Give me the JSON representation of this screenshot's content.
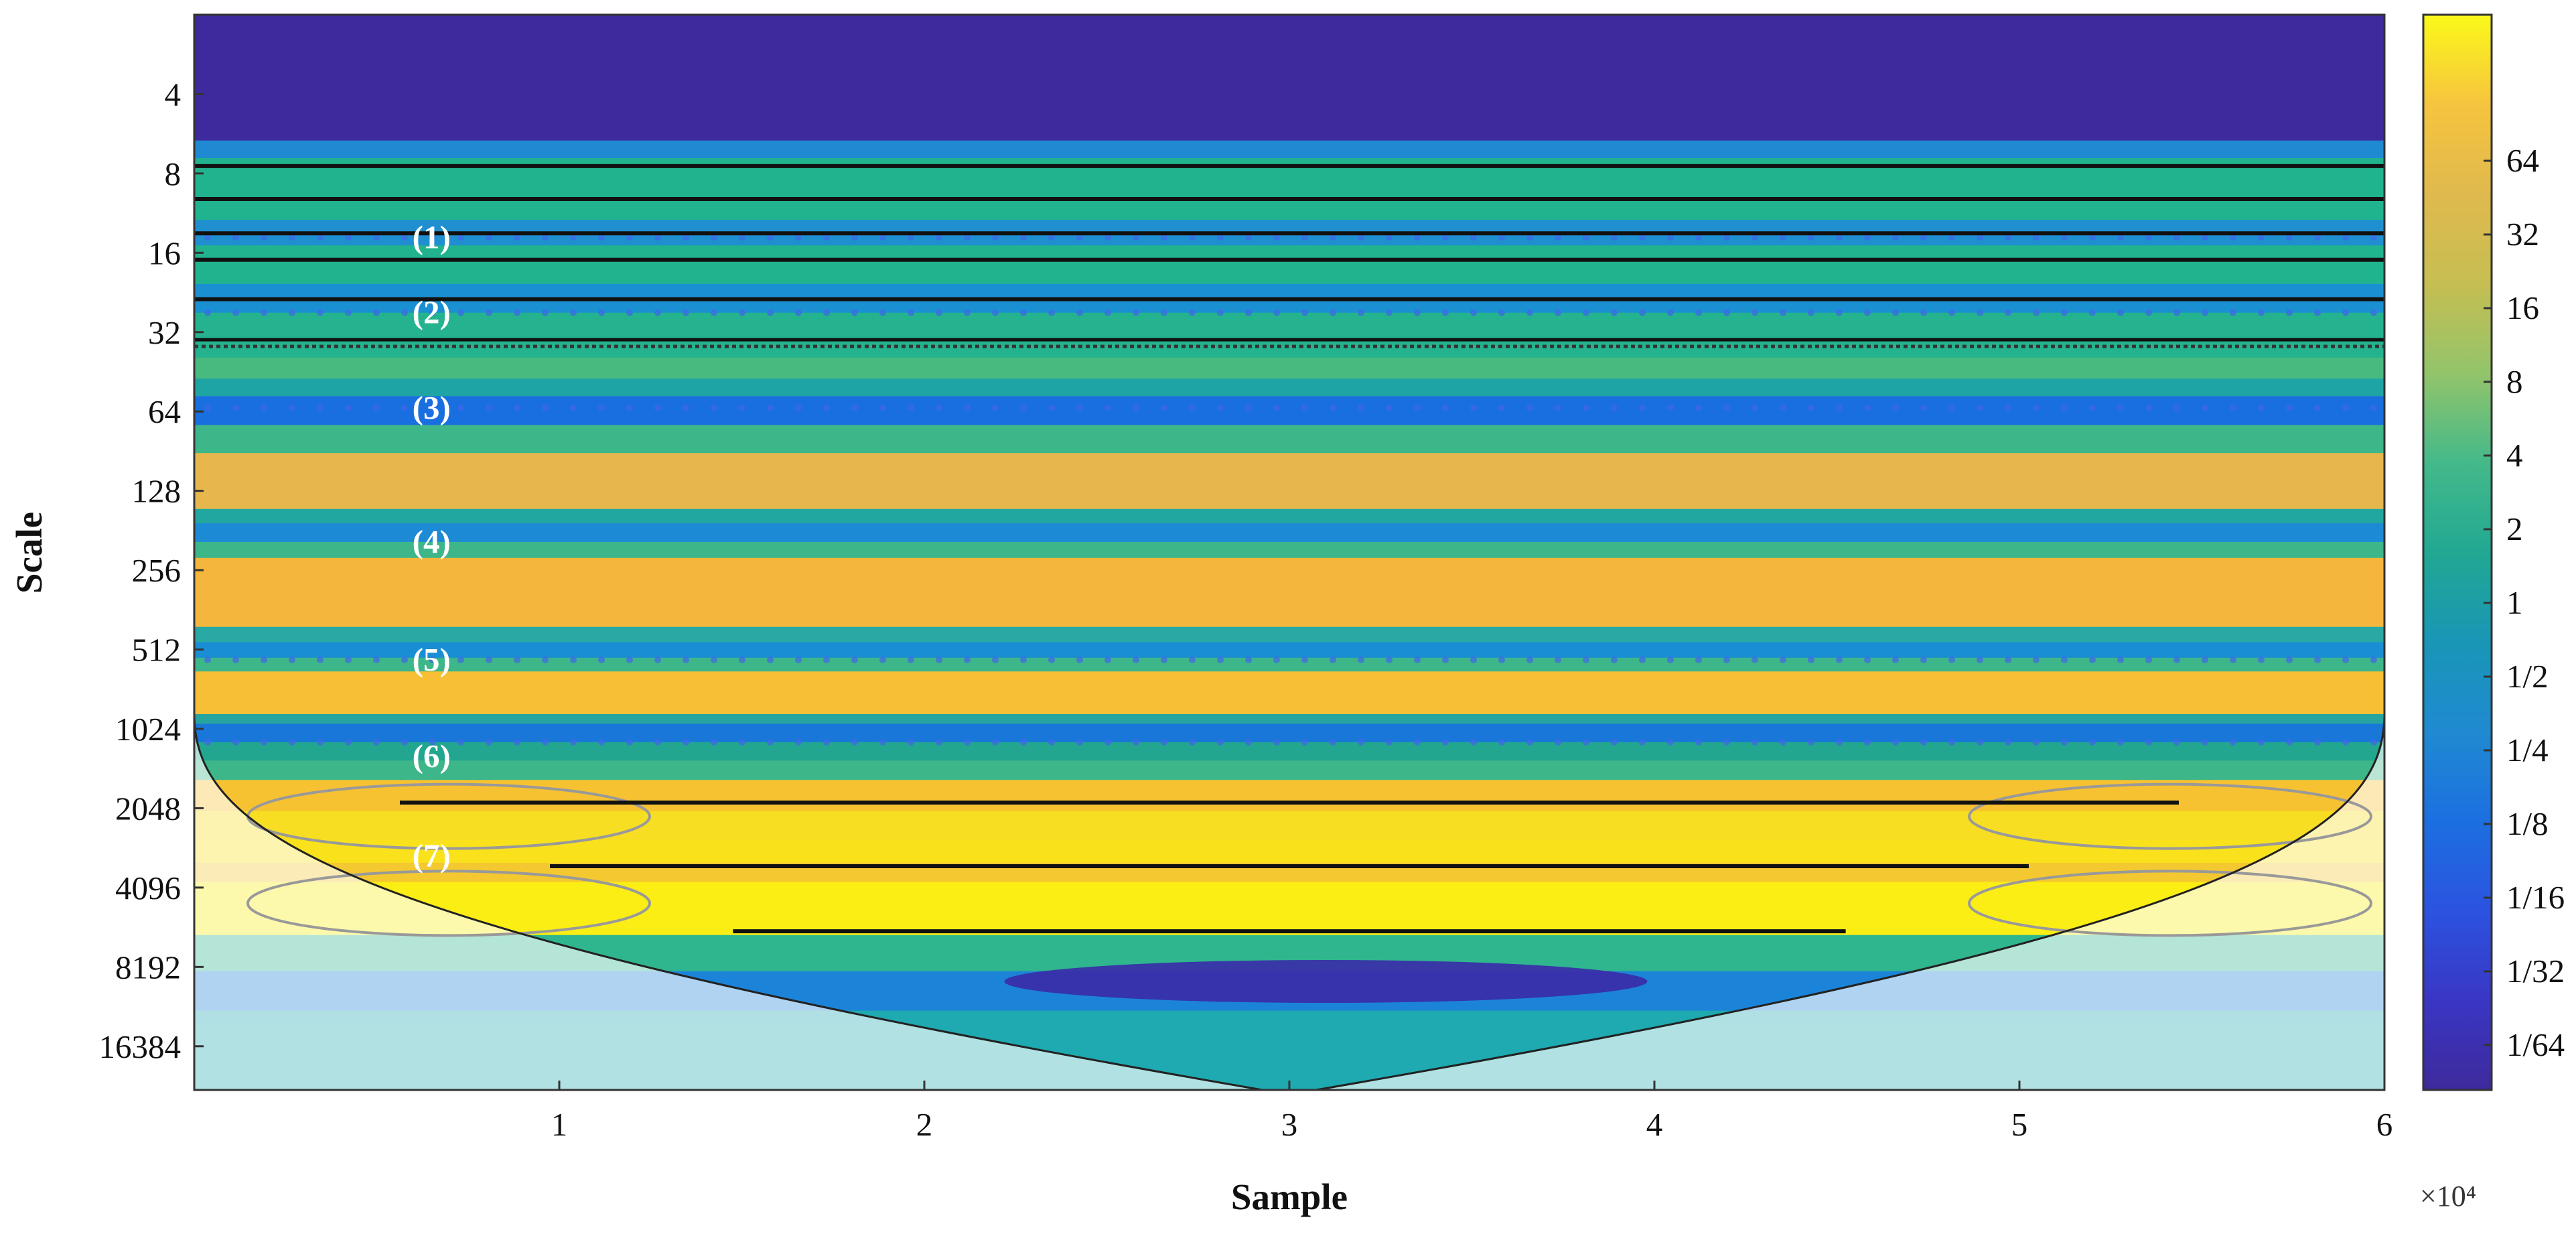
{
  "chart_data": {
    "type": "heatmap",
    "title": "",
    "xlabel": "Sample",
    "ylabel": "Scale",
    "x_multiplier": "×10⁴",
    "x_ticks": [
      1,
      2,
      3,
      4,
      5,
      6
    ],
    "xlim": [
      0,
      6
    ],
    "y_scale": "log2",
    "y_ticks": [
      4,
      8,
      16,
      32,
      64,
      128,
      256,
      512,
      1024,
      2048,
      4096,
      8192,
      16384
    ],
    "ylim": [
      2,
      24000
    ],
    "colorbar": {
      "scale": "log2",
      "ticks": [
        "64",
        "32",
        "16",
        "8",
        "4",
        "2",
        "1",
        "1/2",
        "1/4",
        "1/8",
        "1/16",
        "1/32",
        "1/64"
      ],
      "colors": [
        "#fbf91a",
        "#f6c43e",
        "#e0b94e",
        "#c6be52",
        "#93c46a",
        "#44b98a",
        "#21a892",
        "#1996b6",
        "#1f8ad1",
        "#1c6fe0",
        "#2b53e0",
        "#3a36c4",
        "#3e2a9c"
      ]
    },
    "bands": [
      {
        "scale_from": 2,
        "scale_to": 6,
        "magnitude": "1/64",
        "color": "#3e2a9c"
      },
      {
        "scale_from": 6,
        "scale_to": 7,
        "magnitude": "1/8",
        "color": "#1f8ad1"
      },
      {
        "scale_from": 7,
        "scale_to": 12,
        "magnitude": "2",
        "color": "#21b38e"
      },
      {
        "scale_from": 12,
        "scale_to": 15,
        "magnitude": "1/8",
        "color": "#1f8fd0"
      },
      {
        "scale_from": 15,
        "scale_to": 21,
        "magnitude": "2",
        "color": "#21b38e"
      },
      {
        "scale_from": 21,
        "scale_to": 27,
        "magnitude": "1/8",
        "color": "#1a90d2"
      },
      {
        "scale_from": 27,
        "scale_to": 40,
        "magnitude": "2",
        "color": "#24b38e"
      },
      {
        "scale_from": 40,
        "scale_to": 48,
        "magnitude": "4",
        "color": "#48ba80"
      },
      {
        "scale_from": 48,
        "scale_to": 56,
        "magnitude": "1",
        "color": "#1fa4a4"
      },
      {
        "scale_from": 56,
        "scale_to": 72,
        "magnitude": "1/8",
        "color": "#1a6fe0"
      },
      {
        "scale_from": 72,
        "scale_to": 92,
        "magnitude": "2",
        "color": "#3db68a"
      },
      {
        "scale_from": 92,
        "scale_to": 150,
        "magnitude": "16",
        "color": "#e7b74e"
      },
      {
        "scale_from": 150,
        "scale_to": 170,
        "magnitude": "1",
        "color": "#22a7a0"
      },
      {
        "scale_from": 170,
        "scale_to": 200,
        "magnitude": "1/8",
        "color": "#1d8ad6"
      },
      {
        "scale_from": 200,
        "scale_to": 230,
        "magnitude": "2",
        "color": "#3db68a"
      },
      {
        "scale_from": 230,
        "scale_to": 420,
        "magnitude": "32",
        "color": "#f4b63c"
      },
      {
        "scale_from": 420,
        "scale_to": 480,
        "magnitude": "1",
        "color": "#2aa8a4"
      },
      {
        "scale_from": 480,
        "scale_to": 550,
        "magnitude": "1/8",
        "color": "#1a8ed4"
      },
      {
        "scale_from": 550,
        "scale_to": 620,
        "magnitude": "2",
        "color": "#3db68a"
      },
      {
        "scale_from": 620,
        "scale_to": 900,
        "magnitude": "32",
        "color": "#f7bf36"
      },
      {
        "scale_from": 900,
        "scale_to": 980,
        "magnitude": "1",
        "color": "#27a3a0"
      },
      {
        "scale_from": 980,
        "scale_to": 1150,
        "magnitude": "1/8",
        "color": "#1a77da"
      },
      {
        "scale_from": 1150,
        "scale_to": 1350,
        "magnitude": "1",
        "color": "#22a690"
      },
      {
        "scale_from": 1350,
        "scale_to": 1600,
        "magnitude": "2",
        "color": "#3db68a"
      },
      {
        "scale_from": 1600,
        "scale_to": 2100,
        "magnitude": "32",
        "color": "#f7c231"
      },
      {
        "scale_from": 2100,
        "scale_to": 2700,
        "magnitude": "64",
        "color": "#f7de22"
      },
      {
        "scale_from": 2700,
        "scale_to": 3300,
        "magnitude": "64",
        "color": "#f9e21c"
      },
      {
        "scale_from": 3300,
        "scale_to": 3900,
        "magnitude": "32",
        "color": "#f4c830"
      },
      {
        "scale_from": 3900,
        "scale_to": 6200,
        "magnitude": "64",
        "color": "#fbee15"
      },
      {
        "scale_from": 6200,
        "scale_to": 8500,
        "magnitude": "2",
        "color": "#2fb68e"
      },
      {
        "scale_from": 8500,
        "scale_to": 12000,
        "magnitude": "1/16",
        "color": "#1c84d8"
      },
      {
        "scale_from": 12000,
        "scale_to": 24000,
        "magnitude": "1",
        "color": "#1fa9b0"
      }
    ],
    "ridge_lines_scale": [
      7.5,
      10,
      13.5,
      17,
      24,
      3400,
      6000
    ],
    "ridge_lines_double_scale": [
      35
    ],
    "annotations": [
      {
        "text": "(1)",
        "x": 0.65,
        "scale": 14
      },
      {
        "text": "(2)",
        "x": 0.65,
        "scale": 27
      },
      {
        "text": "(3)",
        "x": 0.65,
        "scale": 62
      },
      {
        "text": "(4)",
        "x": 0.65,
        "scale": 200
      },
      {
        "text": "(5)",
        "x": 0.65,
        "scale": 560
      },
      {
        "text": "(6)",
        "x": 0.65,
        "scale": 1300
      },
      {
        "text": "(7)",
        "x": 0.65,
        "scale": 3100
      }
    ],
    "cone_of_influence": {
      "apex_x": 3.0,
      "apex_scale": 24000
    },
    "contour_loops_scale": [
      2200,
      4700
    ]
  }
}
